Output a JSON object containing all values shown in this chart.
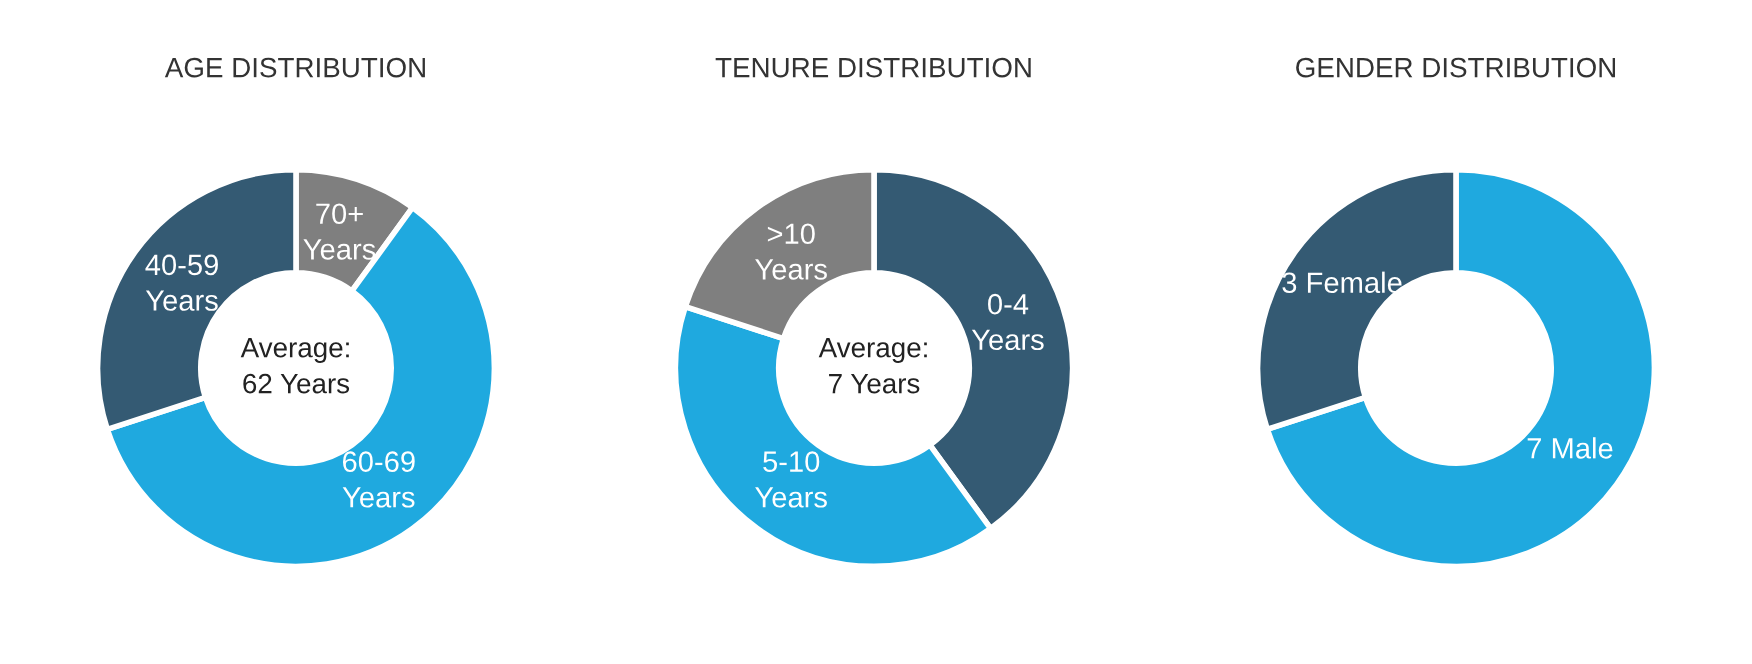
{
  "chart_data": [
    {
      "type": "donut",
      "title": "AGE DISTRIBUTION",
      "categories": [
        "70+\nYears",
        "60-69\nYears",
        "40-59\nYears"
      ],
      "values": [
        10,
        60,
        30
      ],
      "colors": [
        "#7f7f7f",
        "#1fa9df",
        "#345a73"
      ],
      "annotations": [
        "Average:\n62 Years"
      ]
    },
    {
      "type": "donut",
      "title": "TENURE DISTRIBUTION",
      "categories": [
        "0-4\nYears",
        "5-10\nYears",
        ">10\nYears"
      ],
      "values": [
        40,
        40,
        20
      ],
      "colors": [
        "#345a73",
        "#1fa9df",
        "#7f7f7f"
      ],
      "annotations": [
        "Average:\n7 Years"
      ]
    },
    {
      "type": "donut",
      "title": "GENDER DISTRIBUTION",
      "categories": [
        "7 Male",
        "3 Female"
      ],
      "values": [
        7,
        3
      ],
      "colors": [
        "#1fa9df",
        "#345a73"
      ]
    }
  ]
}
